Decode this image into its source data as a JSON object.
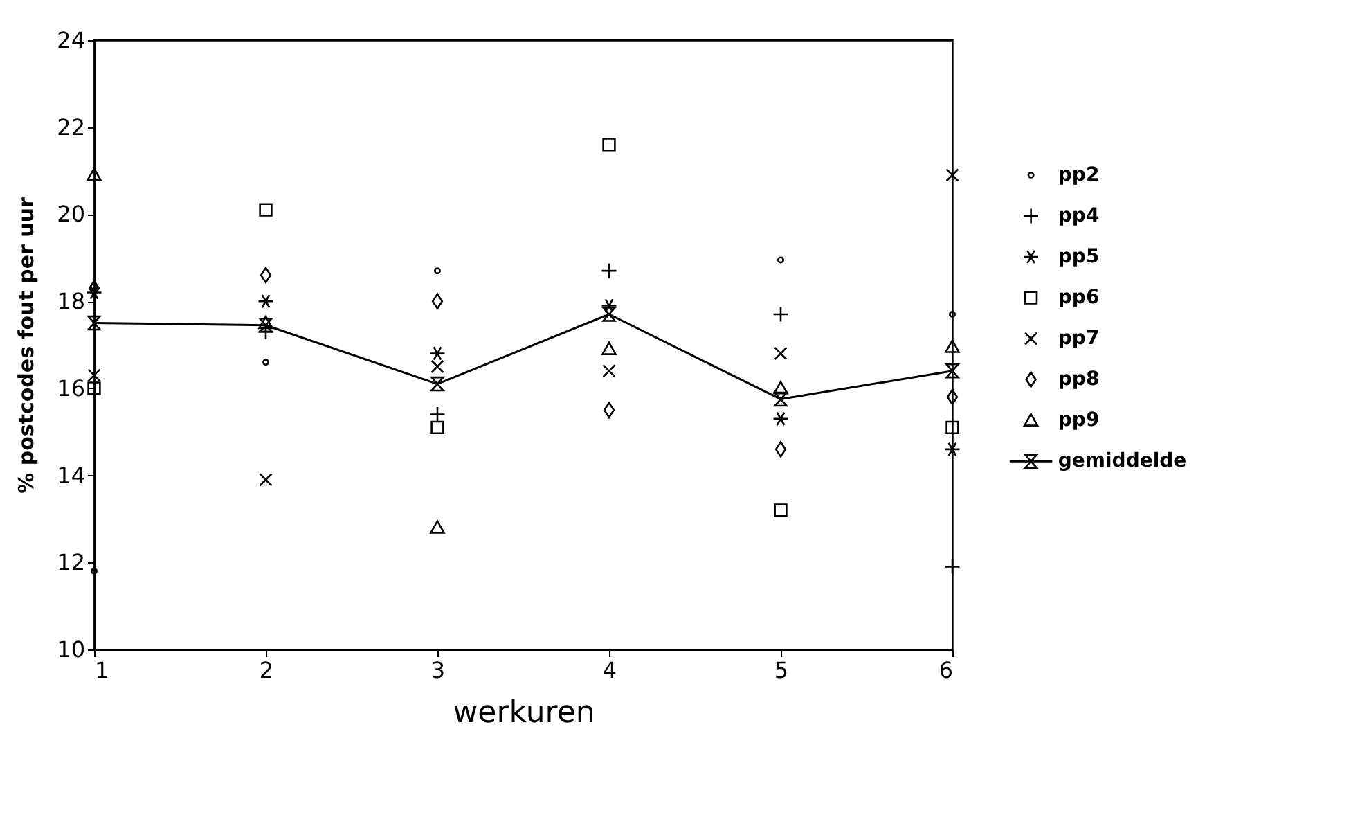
{
  "chart_data": {
    "type": "scatter",
    "xlabel": "werkuren",
    "ylabel": "% postcodes fout per uur",
    "x": [
      1,
      2,
      3,
      4,
      5,
      6
    ],
    "xlim": [
      1,
      6
    ],
    "xticks": [
      1,
      2,
      3,
      4,
      5,
      6
    ],
    "ylim": [
      10,
      24
    ],
    "yticks": [
      10,
      12,
      14,
      16,
      18,
      20,
      22,
      24
    ],
    "grid": false,
    "legend": "right",
    "series": [
      {
        "name": "pp2",
        "color": "#000000",
        "values": [
          11.8,
          16.6,
          18.7,
          null,
          18.95,
          17.7
        ]
      },
      {
        "name": "pp4",
        "color": "#000000",
        "values": [
          null,
          17.3,
          15.4,
          18.7,
          17.7,
          11.9
        ]
      },
      {
        "name": "pp5",
        "color": "#000000",
        "values": [
          18.2,
          18.0,
          16.8,
          17.9,
          15.3,
          14.6
        ]
      },
      {
        "name": "pp6",
        "color": "#000000",
        "values": [
          16.0,
          20.1,
          15.1,
          21.6,
          13.2,
          15.1
        ]
      },
      {
        "name": "pp7",
        "color": "#000000",
        "values": [
          16.3,
          13.9,
          16.5,
          16.4,
          16.8,
          20.9
        ]
      },
      {
        "name": "pp8",
        "color": "#000000",
        "values": [
          18.3,
          18.6,
          18.0,
          15.5,
          14.6,
          15.8
        ]
      },
      {
        "name": "pp9",
        "color": "#000000",
        "values": [
          20.9,
          17.5,
          12.8,
          16.9,
          16.0,
          16.95
        ]
      },
      {
        "name": "gemiddelde",
        "type": "line",
        "color": "#000000",
        "marker": "diamond",
        "line_style": "solid",
        "values": [
          17.5,
          17.45,
          16.1,
          17.7,
          15.75,
          16.4
        ]
      }
    ]
  }
}
